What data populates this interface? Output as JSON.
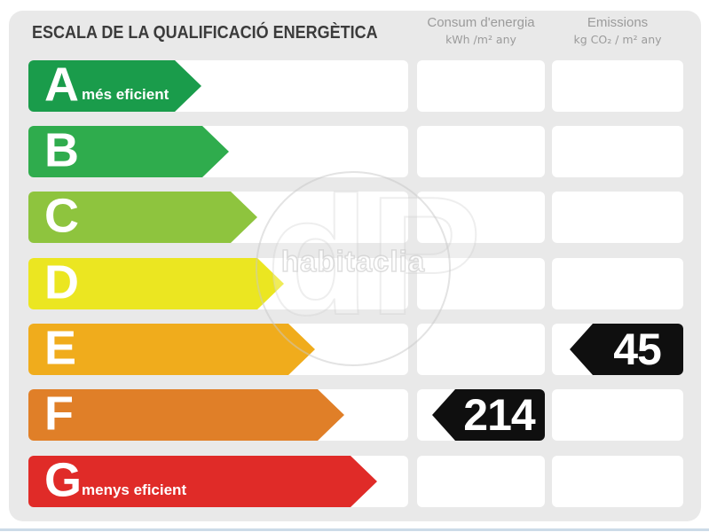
{
  "title": "ESCALA DE LA QUALIFICACIÓ ENERGÈTICA",
  "columns": {
    "consum": {
      "title": "Consum d'energia",
      "unit": "kWh /m² any"
    },
    "emissions": {
      "title": "Emissions",
      "unit": "kg CO₂ / m² any"
    }
  },
  "scale": {
    "rows": [
      {
        "grade": "A",
        "note": "més eficient",
        "color": "#1A9C4B",
        "arrow_width": 195
      },
      {
        "grade": "B",
        "note": "",
        "color": "#2FAC4D",
        "arrow_width": 226
      },
      {
        "grade": "C",
        "note": "",
        "color": "#8EC43E",
        "arrow_width": 258
      },
      {
        "grade": "D",
        "note": "",
        "color": "#EBE621",
        "arrow_width": 288
      },
      {
        "grade": "E",
        "note": "",
        "color": "#F0AC1C",
        "arrow_width": 323
      },
      {
        "grade": "F",
        "note": "",
        "color": "#E07F28",
        "arrow_width": 356
      },
      {
        "grade": "G",
        "note": "menys eficient",
        "color": "#E02B28",
        "arrow_width": 393
      }
    ]
  },
  "values": {
    "consum": {
      "grade": "F",
      "value": "214"
    },
    "emissions": {
      "grade": "E",
      "value": "45"
    }
  },
  "watermark": {
    "text": "habitaclia",
    "glyph": "dP"
  },
  "colors": {
    "panel_bg": "#E9E9E9",
    "tag_bg": "#0F0F0F",
    "header_text": "#9B9B9B",
    "title_text": "#3B3B3B"
  },
  "chart_data": {
    "type": "bar",
    "title": "ESCALA DE LA QUALIFICACIÓ ENERGÈTICA",
    "categories": [
      "A",
      "B",
      "C",
      "D",
      "E",
      "F",
      "G"
    ],
    "series": [
      {
        "name": "scale-arrow-relative-length-px",
        "values": [
          195,
          226,
          258,
          288,
          323,
          356,
          393
        ]
      }
    ],
    "annotations": [
      {
        "column": "Consum d'energia (kWh/m² any)",
        "value": 214,
        "grade": "F"
      },
      {
        "column": "Emissions (kg CO₂/m² any)",
        "value": 45,
        "grade": "E"
      }
    ],
    "legend": false,
    "notes": {
      "best": "A — més eficient",
      "worst": "G — menys eficient"
    }
  }
}
